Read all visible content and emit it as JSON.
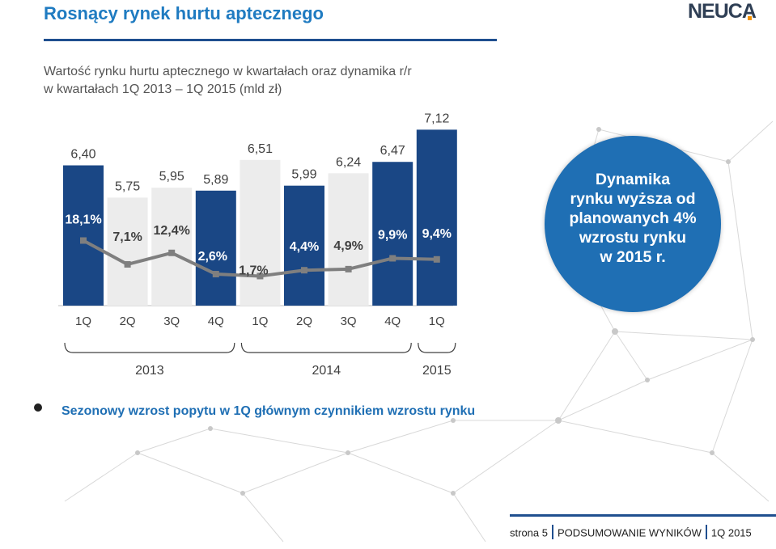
{
  "header": {
    "title": "Rosnący rynek hurtu aptecznego",
    "logo_text": "NEUCA"
  },
  "subtitle_line1": "Wartość rynku hurtu aptecznego w kwartałach oraz dynamika r/r",
  "subtitle_line2": "w kwartałach 1Q 2013 – 1Q 2015  (mld zł)",
  "chart_data": {
    "type": "bar",
    "categories": [
      "1Q",
      "2Q",
      "3Q",
      "4Q",
      "1Q",
      "2Q",
      "3Q",
      "4Q",
      "1Q"
    ],
    "years": [
      "2013",
      "2014",
      "2015"
    ],
    "series": [
      {
        "values": [
          6.4,
          5.75,
          5.95,
          5.89,
          6.51,
          5.99,
          6.24,
          6.47,
          7.12
        ],
        "labels": [
          "6,40",
          "5,75",
          "5,95",
          "5,89",
          "6,51",
          "5,99",
          "6,24",
          "6,47",
          "7,12"
        ]
      },
      {
        "type": "line",
        "values": [
          18.1,
          7.1,
          12.4,
          2.6,
          1.7,
          4.4,
          4.9,
          9.9,
          9.4
        ],
        "labels": [
          "18,1%",
          "7,1%",
          "12,4%",
          "2,6%",
          "1,7%",
          "4,4%",
          "4,9%",
          "9,9%",
          "9,4%"
        ]
      }
    ],
    "colors": {
      "dark_bar": "#1a4785",
      "light_bar": "#ececec",
      "line": "#7f7f7f"
    },
    "title": "",
    "xlabel": "",
    "ylabel": ""
  },
  "callout": {
    "line1": "Dynamika",
    "line2": "rynku wyższa od",
    "line3": "planowanych 4%",
    "line4": "wzrostu rynku",
    "line5": "w 2015 r."
  },
  "bullet_text": "Sezonowy wzrost popytu w 1Q głównym czynnikiem wzrostu rynku",
  "footer": {
    "page": "strona 5",
    "section": "PODSUMOWANIE WYNIKÓW",
    "period": "1Q 2015"
  }
}
